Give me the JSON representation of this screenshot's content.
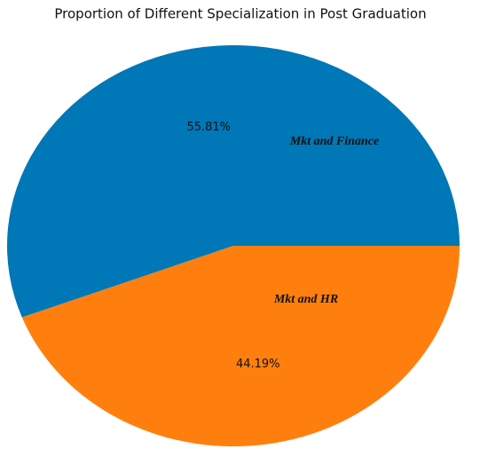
{
  "chart_data": {
    "type": "pie",
    "title": "Proportion of Different Specialization in Post Graduation",
    "categories": [
      "Mkt and Finance",
      "Mkt and HR"
    ],
    "values": [
      55.81,
      44.19
    ],
    "value_labels": [
      "55.81%",
      "44.19%"
    ],
    "colors": [
      "#0077b6",
      "#ff7f0e"
    ]
  }
}
